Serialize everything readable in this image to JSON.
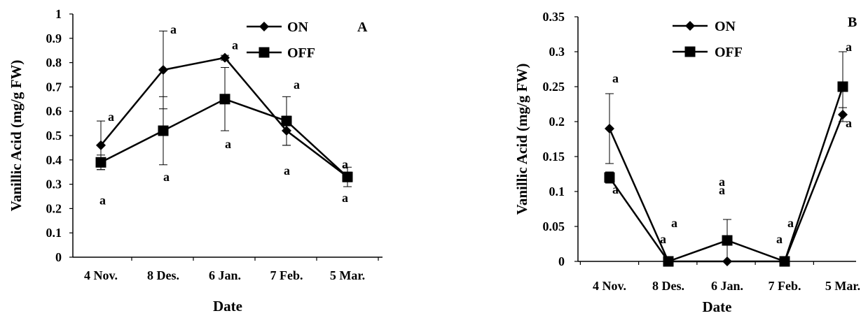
{
  "chart_data": [
    {
      "type": "line",
      "panel_label": "A",
      "categories": [
        "4 Nov.",
        "8 Des.",
        "6 Jan.",
        "7 Feb.",
        "5 Mar."
      ],
      "xlabel": "Date",
      "ylabel": "Vanillic Acid (mg/g FW)",
      "ylim": [
        0,
        1
      ],
      "yticks": [
        "0",
        "0.1",
        "0.2",
        "0.3",
        "0.4",
        "0.5",
        "0.6",
        "0.7",
        "0.8",
        "0.9",
        "1"
      ],
      "grid": false,
      "legend_position": "top-right",
      "series": [
        {
          "name": "ON",
          "marker": "diamond",
          "values": [
            0.46,
            0.77,
            0.82,
            0.52,
            0.33
          ],
          "error": [
            0.1,
            0.16,
            0.01,
            0.06,
            0.02
          ],
          "labels": [
            "a",
            "a",
            "a",
            "a",
            "a"
          ]
        },
        {
          "name": "OFF",
          "marker": "square",
          "values": [
            0.39,
            0.52,
            0.65,
            0.56,
            0.33
          ],
          "error": [
            0.03,
            0.14,
            0.13,
            0.1,
            0.04
          ],
          "labels": [
            "a",
            "a",
            "a",
            "a",
            "a"
          ]
        }
      ]
    },
    {
      "type": "line",
      "panel_label": "B",
      "categories": [
        "4 Nov.",
        "8 Des.",
        "6 Jan.",
        "7 Feb.",
        "5 Mar."
      ],
      "xlabel": "Date",
      "ylabel": "Vanillic Acid (mg/g FW)",
      "ylim": [
        0,
        0.35
      ],
      "yticks": [
        "0",
        "0.05",
        "0.1",
        "0.15",
        "0.2",
        "0.25",
        "0.3",
        "0.35"
      ],
      "grid": false,
      "legend_position": "top-left",
      "series": [
        {
          "name": "ON",
          "marker": "diamond",
          "values": [
            0.19,
            0,
            0,
            0,
            0.21
          ],
          "error": [
            0.05,
            0,
            0,
            0,
            0.01
          ],
          "labels": [
            "a",
            "a",
            "a",
            "a",
            "a"
          ]
        },
        {
          "name": "OFF",
          "marker": "square",
          "values": [
            0.12,
            0,
            0.03,
            0,
            0.25
          ],
          "error": [
            0.008,
            0,
            0.03,
            0,
            0.05
          ],
          "labels": [
            "a",
            "a",
            "a",
            "a",
            "a"
          ]
        }
      ]
    }
  ]
}
